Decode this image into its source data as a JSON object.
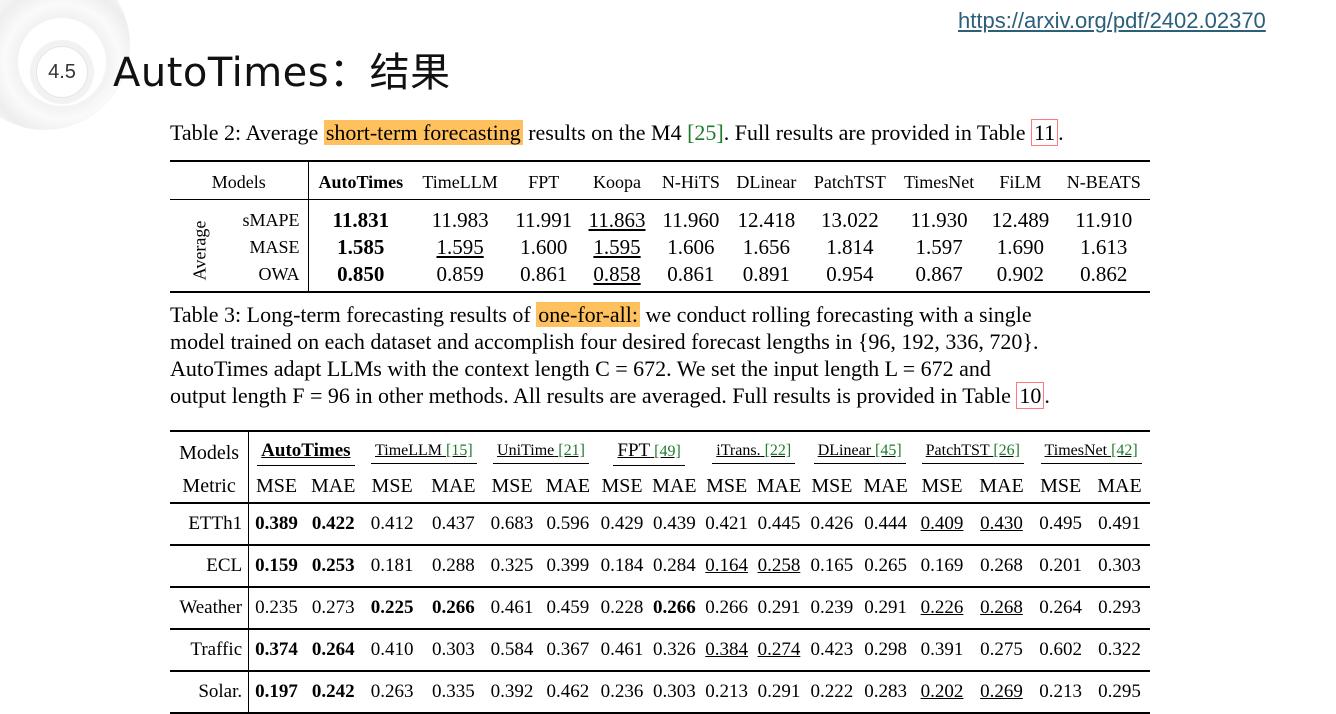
{
  "header": {
    "badge": "4.5",
    "title": "AutoTimes：结果",
    "url": "https://arxiv.org/pdf/2402.02370"
  },
  "caption2": {
    "prefix": "Table 2: Average",
    "highlight": "short-term forecasting",
    "middle": "results on the M4",
    "ref": "[25]",
    "suffix": ". Full results are provided in Table",
    "table_ref": "11",
    "end": "."
  },
  "table2": {
    "headers": [
      "Models",
      "AutoTimes",
      "TimeLLM",
      "FPT",
      "Koopa",
      "N-HiTS",
      "DLinear",
      "PatchTST",
      "TimesNet",
      "FiLM",
      "N-BEATS"
    ],
    "group_label": "Average",
    "rows": [
      {
        "metric": "sMAPE",
        "values": [
          "11.831",
          "11.983",
          "11.991",
          "11.863",
          "11.960",
          "12.418",
          "13.022",
          "11.930",
          "12.489",
          "11.910"
        ]
      },
      {
        "metric": "MASE",
        "values": [
          "1.585",
          "1.595",
          "1.600",
          "1.595",
          "1.606",
          "1.656",
          "1.814",
          "1.597",
          "1.690",
          "1.613"
        ]
      },
      {
        "metric": "OWA",
        "values": [
          "0.850",
          "0.859",
          "0.861",
          "0.858",
          "0.861",
          "0.891",
          "0.954",
          "0.867",
          "0.902",
          "0.862"
        ]
      }
    ]
  },
  "caption3": {
    "prefix": "Table 3: Long-term forecasting results of",
    "highlight": "one-for-all:",
    "line1_rest": "we conduct rolling forecasting with a single",
    "line2": "model trained on each dataset and accomplish four desired forecast lengths in {96, 192, 336, 720}.",
    "line3": "AutoTimes adapt LLMs with the context length C = 672. We set the input length L = 672 and",
    "line4": "output length F = 96 in other methods. All results are averaged. Full results is provided in Table",
    "table_ref": "10",
    "end": "."
  },
  "table3": {
    "models_label": "Models",
    "metric_label": "Metric",
    "models": [
      {
        "name": "AutoTimes",
        "ref": ""
      },
      {
        "name": "TimeLLM",
        "ref": "[15]"
      },
      {
        "name": "UniTime",
        "ref": "[21]"
      },
      {
        "name": "FPT",
        "ref": "[49]"
      },
      {
        "name": "iTrans.",
        "ref": "[22]"
      },
      {
        "name": "DLinear",
        "ref": "[45]"
      },
      {
        "name": "PatchTST",
        "ref": "[26]"
      },
      {
        "name": "TimesNet",
        "ref": "[42]"
      }
    ],
    "mse": "MSE",
    "mae": "MAE",
    "rows": [
      {
        "dataset": "ETTh1",
        "values": [
          "0.389",
          "0.422",
          "0.412",
          "0.437",
          "0.683",
          "0.596",
          "0.429",
          "0.439",
          "0.421",
          "0.445",
          "0.426",
          "0.444",
          "0.409",
          "0.430",
          "0.495",
          "0.491"
        ],
        "bold": [
          0,
          1
        ],
        "underline": [
          12,
          13
        ]
      },
      {
        "dataset": "ECL",
        "values": [
          "0.159",
          "0.253",
          "0.181",
          "0.288",
          "0.325",
          "0.399",
          "0.184",
          "0.284",
          "0.164",
          "0.258",
          "0.165",
          "0.265",
          "0.169",
          "0.268",
          "0.201",
          "0.303"
        ],
        "bold": [
          0,
          1
        ],
        "underline": [
          8,
          9
        ]
      },
      {
        "dataset": "Weather",
        "values": [
          "0.235",
          "0.273",
          "0.225",
          "0.266",
          "0.461",
          "0.459",
          "0.228",
          "0.266",
          "0.266",
          "0.291",
          "0.239",
          "0.291",
          "0.226",
          "0.268",
          "0.264",
          "0.293"
        ],
        "bold": [
          2,
          3,
          7
        ],
        "underline": [
          12,
          13
        ]
      },
      {
        "dataset": "Traffic",
        "values": [
          "0.374",
          "0.264",
          "0.410",
          "0.303",
          "0.584",
          "0.367",
          "0.461",
          "0.326",
          "0.384",
          "0.274",
          "0.423",
          "0.298",
          "0.391",
          "0.275",
          "0.602",
          "0.322"
        ],
        "bold": [
          0,
          1
        ],
        "underline": [
          8,
          9
        ]
      },
      {
        "dataset": "Solar.",
        "values": [
          "0.197",
          "0.242",
          "0.263",
          "0.335",
          "0.392",
          "0.462",
          "0.236",
          "0.303",
          "0.213",
          "0.291",
          "0.222",
          "0.283",
          "0.202",
          "0.269",
          "0.213",
          "0.295"
        ],
        "bold": [
          0,
          1
        ],
        "underline": [
          12,
          13
        ]
      }
    ]
  }
}
